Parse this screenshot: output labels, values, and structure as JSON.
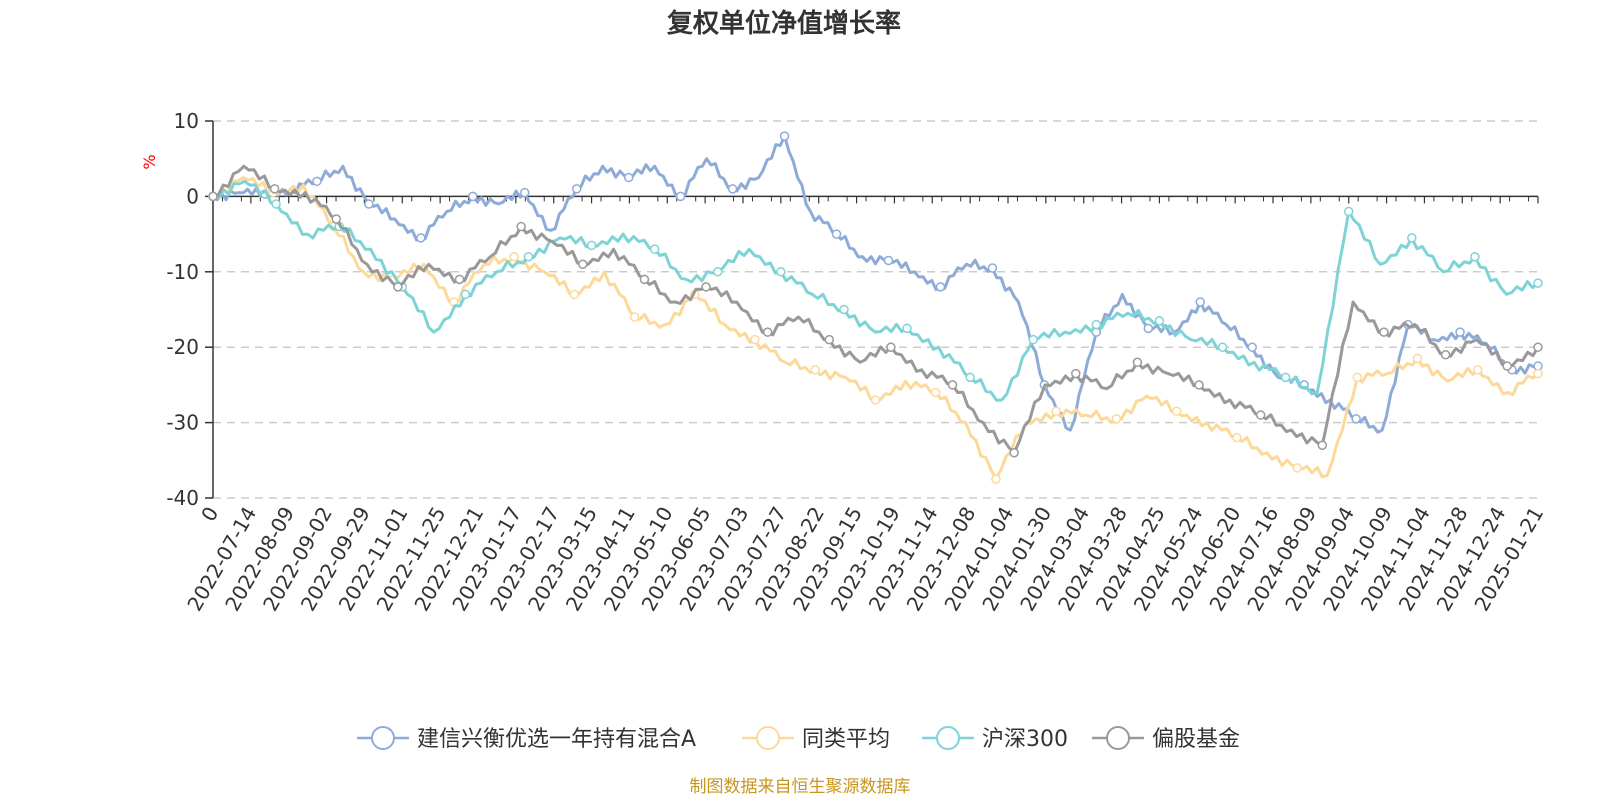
{
  "chart_data": {
    "type": "line",
    "title": "复权单位净值增长率",
    "ylabel": "%",
    "ylim": [
      -40,
      10
    ],
    "yticks": [
      10,
      0,
      -10,
      -20,
      -30,
      -40
    ],
    "x_tick_labels": [
      "0",
      "2022-07-14",
      "2022-08-09",
      "2022-09-02",
      "2022-09-29",
      "2022-11-01",
      "2022-11-25",
      "2022-12-21",
      "2023-01-17",
      "2023-02-17",
      "2023-03-15",
      "2023-04-11",
      "2023-05-10",
      "2023-06-05",
      "2023-07-03",
      "2023-07-27",
      "2023-08-22",
      "2023-09-15",
      "2023-10-19",
      "2023-11-14",
      "2023-12-08",
      "2024-01-04",
      "2024-01-30",
      "2024-03-04",
      "2024-03-28",
      "2024-04-25",
      "2024-05-24",
      "2024-06-20",
      "2024-07-16",
      "2024-08-09",
      "2024-09-04",
      "2024-10-09",
      "2024-11-04",
      "2024-11-28",
      "2024-12-24",
      "2025-01-21"
    ],
    "series": [
      {
        "name": "建信兴衡优选一年持有混合A",
        "color": "#8eabd8",
        "values": [
          0,
          0.5,
          0.3,
          1.0,
          2.0,
          4.0,
          -1.0,
          -3.0,
          -5.5,
          -2.0,
          0.0,
          -1.0,
          0.5,
          -4.5,
          1.0,
          4.0,
          2.5,
          4.0,
          0.0,
          5.0,
          1.0,
          2.5,
          8.0,
          -2.0,
          -5.0,
          -8.0,
          -8.5,
          -10.0,
          -12.0,
          -9.0,
          -9.5,
          -14.0,
          -25.0,
          -31.0,
          -18.0,
          -13.0,
          -17.5,
          -18.0,
          -14.0,
          -17.0,
          -20.0,
          -24.0,
          -25.0,
          -27.0,
          -29.5,
          -31.0,
          -17.0,
          -19.0,
          -18.0,
          -19.5,
          -23.0,
          -22.5
        ]
      },
      {
        "name": "同类平均",
        "color": "#fdd999",
        "values": [
          0,
          2.5,
          0.5,
          1.5,
          -4.0,
          -10.0,
          -11.0,
          -9.0,
          -14.0,
          -9.0,
          -8.0,
          -10.0,
          -13.0,
          -10.0,
          -16.0,
          -17.0,
          -13.0,
          -17.0,
          -19.0,
          -22.0,
          -23.0,
          -24.0,
          -27.0,
          -24.5,
          -26.0,
          -30.0,
          -37.5,
          -30.0,
          -28.5,
          -29.0,
          -29.5,
          -26.5,
          -28.5,
          -30.0,
          -32.0,
          -34.0,
          -36.0,
          -37.0,
          -24.0,
          -23.5,
          -21.5,
          -24.5,
          -23.0,
          -26.0,
          -23.5
        ]
      },
      {
        "name": "沪深300",
        "color": "#7ed3d6",
        "values": [
          0,
          2.0,
          -1.0,
          -5.0,
          -4.0,
          -7.0,
          -12.0,
          -18.0,
          -13.0,
          -10.0,
          -8.0,
          -5.5,
          -6.5,
          -5.0,
          -7.0,
          -11.0,
          -10.0,
          -7.0,
          -10.0,
          -13.0,
          -15.0,
          -18.0,
          -17.5,
          -20.0,
          -24.0,
          -27.0,
          -19.0,
          -18.0,
          -17.0,
          -15.5,
          -16.5,
          -19.0,
          -20.0,
          -22.0,
          -24.0,
          -26.0,
          -2.0,
          -9.0,
          -5.5,
          -10.0,
          -8.0,
          -13.0,
          -11.5
        ]
      },
      {
        "name": "偏股基金",
        "color": "#999999",
        "values": [
          0,
          4.0,
          1.0,
          0.5,
          -3.0,
          -9.0,
          -12.0,
          -9.0,
          -11.0,
          -8.0,
          -4.0,
          -6.0,
          -9.0,
          -7.0,
          -11.0,
          -14.0,
          -12.0,
          -14.0,
          -18.0,
          -16.0,
          -19.0,
          -22.0,
          -20.0,
          -23.0,
          -25.0,
          -30.0,
          -34.0,
          -25.0,
          -23.5,
          -25.5,
          -22.0,
          -23.5,
          -25.0,
          -27.0,
          -29.0,
          -31.0,
          -33.0,
          -14.0,
          -18.0,
          -17.0,
          -21.0,
          -19.0,
          -22.5,
          -20.0
        ]
      }
    ],
    "legend_position": "bottom",
    "grid": true
  },
  "source_note": "制图数据来自恒生聚源数据库"
}
